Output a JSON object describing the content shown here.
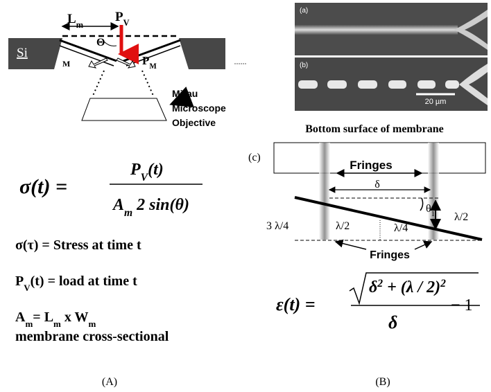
{
  "panel_a": {
    "diagram": {
      "span_length": [
        "L",
        "m"
      ],
      "vertical_load": [
        "P",
        "V"
      ],
      "angle": "Θ",
      "substrate": "Si",
      "membrane_edge": "M",
      "membrane_load": [
        "P",
        "M"
      ],
      "objective_label": [
        "Mirau",
        "Microscope",
        "Objective"
      ]
    },
    "stress_equation": {
      "lhs": "σ(t) =",
      "numerator": [
        "P",
        "V",
        "(t)"
      ],
      "denominator": [
        "A",
        "m",
        " 2 sin(θ)"
      ]
    },
    "definitions": [
      [
        "σ(τ) = Stress at time t"
      ],
      [
        "P",
        "V",
        "(t) = load at time t"
      ],
      [
        "A",
        "m",
        "= L",
        "m",
        " x W",
        "m"
      ],
      [
        "membrane cross-sectional"
      ]
    ],
    "caption": "(A)"
  },
  "panel_b": {
    "micrographs": {
      "labels": [
        "(a)",
        "(b)"
      ],
      "scale_bar": "20 µm"
    },
    "schematic": {
      "title": "Bottom surface of membrane",
      "label": "(c)",
      "fringes_top": "Fringes",
      "spacing": "δ",
      "angle": [
        "θ",
        "1"
      ],
      "height_right": "λ/2",
      "offsets": [
        "3 λ/4",
        "λ/2",
        "λ/4"
      ],
      "fringes_bottom": "Fringes"
    },
    "strain_equation": {
      "lhs": "ε(t) =",
      "numerator": [
        "δ",
        "2",
        " + (λ / 2)",
        "2"
      ],
      "denominator": "δ",
      "tail": "− 1"
    },
    "caption": "(B)"
  }
}
